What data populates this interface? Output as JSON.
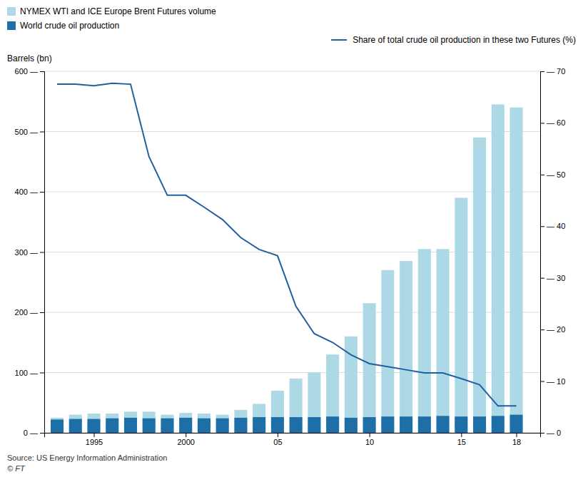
{
  "chart_data": {
    "type": "bar",
    "ylabel": "Barrels (bn)",
    "x": [
      1993,
      1994,
      1995,
      1996,
      1997,
      1998,
      1999,
      2000,
      2001,
      2002,
      2003,
      2004,
      2005,
      2006,
      2007,
      2008,
      2009,
      2010,
      2011,
      2012,
      2013,
      2014,
      2015,
      2016,
      2017,
      2018
    ],
    "xlim": [
      1992.3,
      2019.3
    ],
    "xticks": [
      1995,
      2000,
      {
        "value": 2005,
        "label": "05"
      },
      {
        "value": 2010,
        "label": "10"
      },
      {
        "value": 2015,
        "label": "15"
      },
      {
        "value": 2018,
        "label": "18"
      }
    ],
    "ylim": [
      0,
      600
    ],
    "yticks": [
      {
        "value": 0,
        "label": "0 —"
      },
      {
        "value": 100,
        "label": "100 —"
      },
      {
        "value": 200,
        "label": "200 —"
      },
      {
        "value": 300,
        "label": "300 —"
      },
      {
        "value": 400,
        "label": "400 —"
      },
      {
        "value": 500,
        "label": "500 —"
      },
      {
        "value": 600,
        "label": "600 —"
      }
    ],
    "y2lim": [
      0,
      70
    ],
    "y2ticks": [
      {
        "value": 0,
        "label": "— 0"
      },
      {
        "value": 10,
        "label": "— 10"
      },
      {
        "value": 20,
        "label": "— 20"
      },
      {
        "value": 30,
        "label": "— 30"
      },
      {
        "value": 40,
        "label": "— 40"
      },
      {
        "value": 50,
        "label": "— 50"
      },
      {
        "value": 60,
        "label": "— 60"
      },
      {
        "value": 70,
        "label": "— 70"
      }
    ],
    "grid": true,
    "legend": "top",
    "stacked": false,
    "series": [
      {
        "name": "NYMEX WTI and ICE Europe Brent Futures volume",
        "color": "#add8e6",
        "values": [
          25,
          30,
          32,
          32,
          35,
          35,
          30,
          33,
          32,
          30,
          38,
          48,
          70,
          90,
          100,
          130,
          160,
          215,
          270,
          285,
          305,
          305,
          390,
          490,
          545,
          540
        ]
      },
      {
        "name": "World crude oil production",
        "color": "#1e6fa8",
        "values": [
          22,
          23,
          23,
          24,
          25,
          24,
          24,
          25,
          24,
          24,
          25,
          26,
          26,
          26,
          26,
          27,
          25,
          26,
          27,
          27,
          27,
          28,
          27,
          27,
          28,
          30
        ]
      },
      {
        "name": "Share of total crude oil production in these two Futures (%)",
        "type": "line",
        "axis": "y2",
        "color": "#2060a0",
        "values": [
          67.5,
          67.5,
          67.2,
          67.7,
          67.5,
          53.5,
          46.0,
          46.0,
          43.7,
          41.3,
          37.8,
          35.5,
          34.3,
          24.5,
          19.2,
          17.5,
          15.1,
          13.4,
          12.8,
          12.2,
          11.6,
          11.6,
          10.5,
          9.3,
          5.2,
          5.2
        ]
      }
    ],
    "annotations": [
      "Source: US Energy Information Administration",
      "© FT"
    ]
  }
}
